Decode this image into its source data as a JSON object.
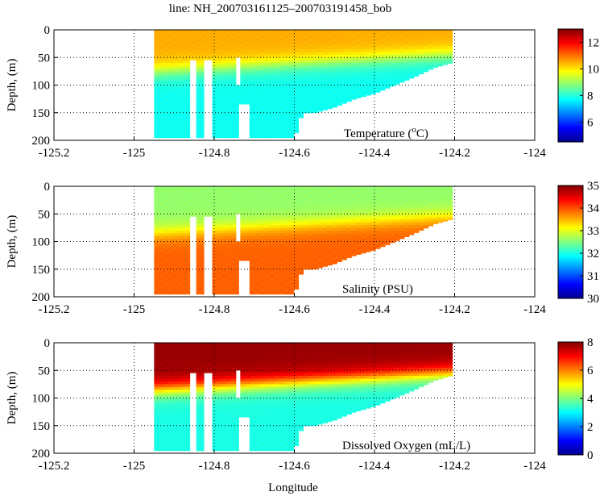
{
  "title": "line: NH_200703161125–200703191458_bob",
  "xlabel": "Longitude",
  "chart_data": [
    {
      "type": "heatmap",
      "label": "Temperature (°C)",
      "label_main": "Temperature (",
      "label_sup": "o",
      "label_end": "C)",
      "ylabel": "Depth, (m)",
      "xlim": [
        -125.2,
        -124
      ],
      "ylim": [
        200,
        0
      ],
      "x_ticks": [
        "-125.2",
        "-125",
        "-124.8",
        "-124.6",
        "-124.4",
        "-124.2",
        "-124"
      ],
      "x_tick_values": [
        -125.2,
        -125,
        -124.8,
        -124.6,
        -124.4,
        -124.2,
        -124
      ],
      "y_ticks": [
        "0",
        "50",
        "100",
        "150",
        "200"
      ],
      "y_tick_values": [
        0,
        50,
        100,
        150,
        200
      ],
      "colorbar": {
        "min": 4.5,
        "max": 13,
        "ticks": [
          "6",
          "8",
          "10",
          "12"
        ],
        "tick_values": [
          6,
          8,
          10,
          12
        ]
      },
      "surface_value": 10.5,
      "bottom_value": 7.8,
      "cline_depth": 75
    },
    {
      "type": "heatmap",
      "label": "Salinity (PSU)",
      "ylabel": "Depth, (m)",
      "xlim": [
        -125.2,
        -124
      ],
      "ylim": [
        200,
        0
      ],
      "x_ticks": [
        "-125.2",
        "-125",
        "-124.8",
        "-124.6",
        "-124.4",
        "-124.2",
        "-124"
      ],
      "x_tick_values": [
        -125.2,
        -125,
        -124.8,
        -124.6,
        -124.4,
        -124.2,
        -124
      ],
      "y_ticks": [
        "0",
        "50",
        "100",
        "150",
        "200"
      ],
      "y_tick_values": [
        0,
        50,
        100,
        150,
        200
      ],
      "colorbar": {
        "min": 30,
        "max": 35,
        "ticks": [
          "30",
          "31",
          "32",
          "33",
          "34",
          "35"
        ],
        "tick_values": [
          30,
          31,
          32,
          33,
          34,
          35
        ]
      },
      "surface_value": 32.6,
      "bottom_value": 33.9,
      "cline_depth": 85
    },
    {
      "type": "heatmap",
      "label": "Dissolved Oxygen (mL/L)",
      "ylabel": "Depth, (m)",
      "xlim": [
        -125.2,
        -124
      ],
      "ylim": [
        200,
        0
      ],
      "x_ticks": [
        "-125.2",
        "-125",
        "-124.8",
        "-124.6",
        "-124.4",
        "-124.2",
        "-124"
      ],
      "x_tick_values": [
        -125.2,
        -125,
        -124.8,
        -124.6,
        -124.4,
        -124.2,
        -124
      ],
      "y_ticks": [
        "0",
        "50",
        "100",
        "150",
        "200"
      ],
      "y_tick_values": [
        0,
        50,
        100,
        150,
        200
      ],
      "colorbar": {
        "min": 0,
        "max": 8,
        "ticks": [
          "0",
          "2",
          "4",
          "6",
          "8"
        ],
        "tick_values": [
          0,
          2,
          4,
          6,
          8
        ]
      },
      "surface_value": 7.8,
      "bottom_value": 3.2,
      "cline_depth": 85
    }
  ],
  "section": {
    "west_lon": -124.95,
    "east_lon": -124.21,
    "max_depth": 200,
    "bottom_profile": [
      [
        -124.95,
        195
      ],
      [
        -124.6,
        195
      ],
      [
        -124.58,
        150
      ],
      [
        -124.55,
        150
      ],
      [
        -124.5,
        140
      ],
      [
        -124.45,
        125
      ],
      [
        -124.4,
        115
      ],
      [
        -124.35,
        100
      ],
      [
        -124.3,
        85
      ],
      [
        -124.25,
        68
      ],
      [
        -124.21,
        60
      ]
    ],
    "gaps": [
      [
        -124.86,
        -124.845,
        55,
        200
      ],
      [
        -124.825,
        -124.805,
        55,
        200
      ],
      [
        -124.745,
        -124.735,
        50,
        100
      ],
      [
        -124.738,
        -124.712,
        135,
        200
      ]
    ]
  }
}
